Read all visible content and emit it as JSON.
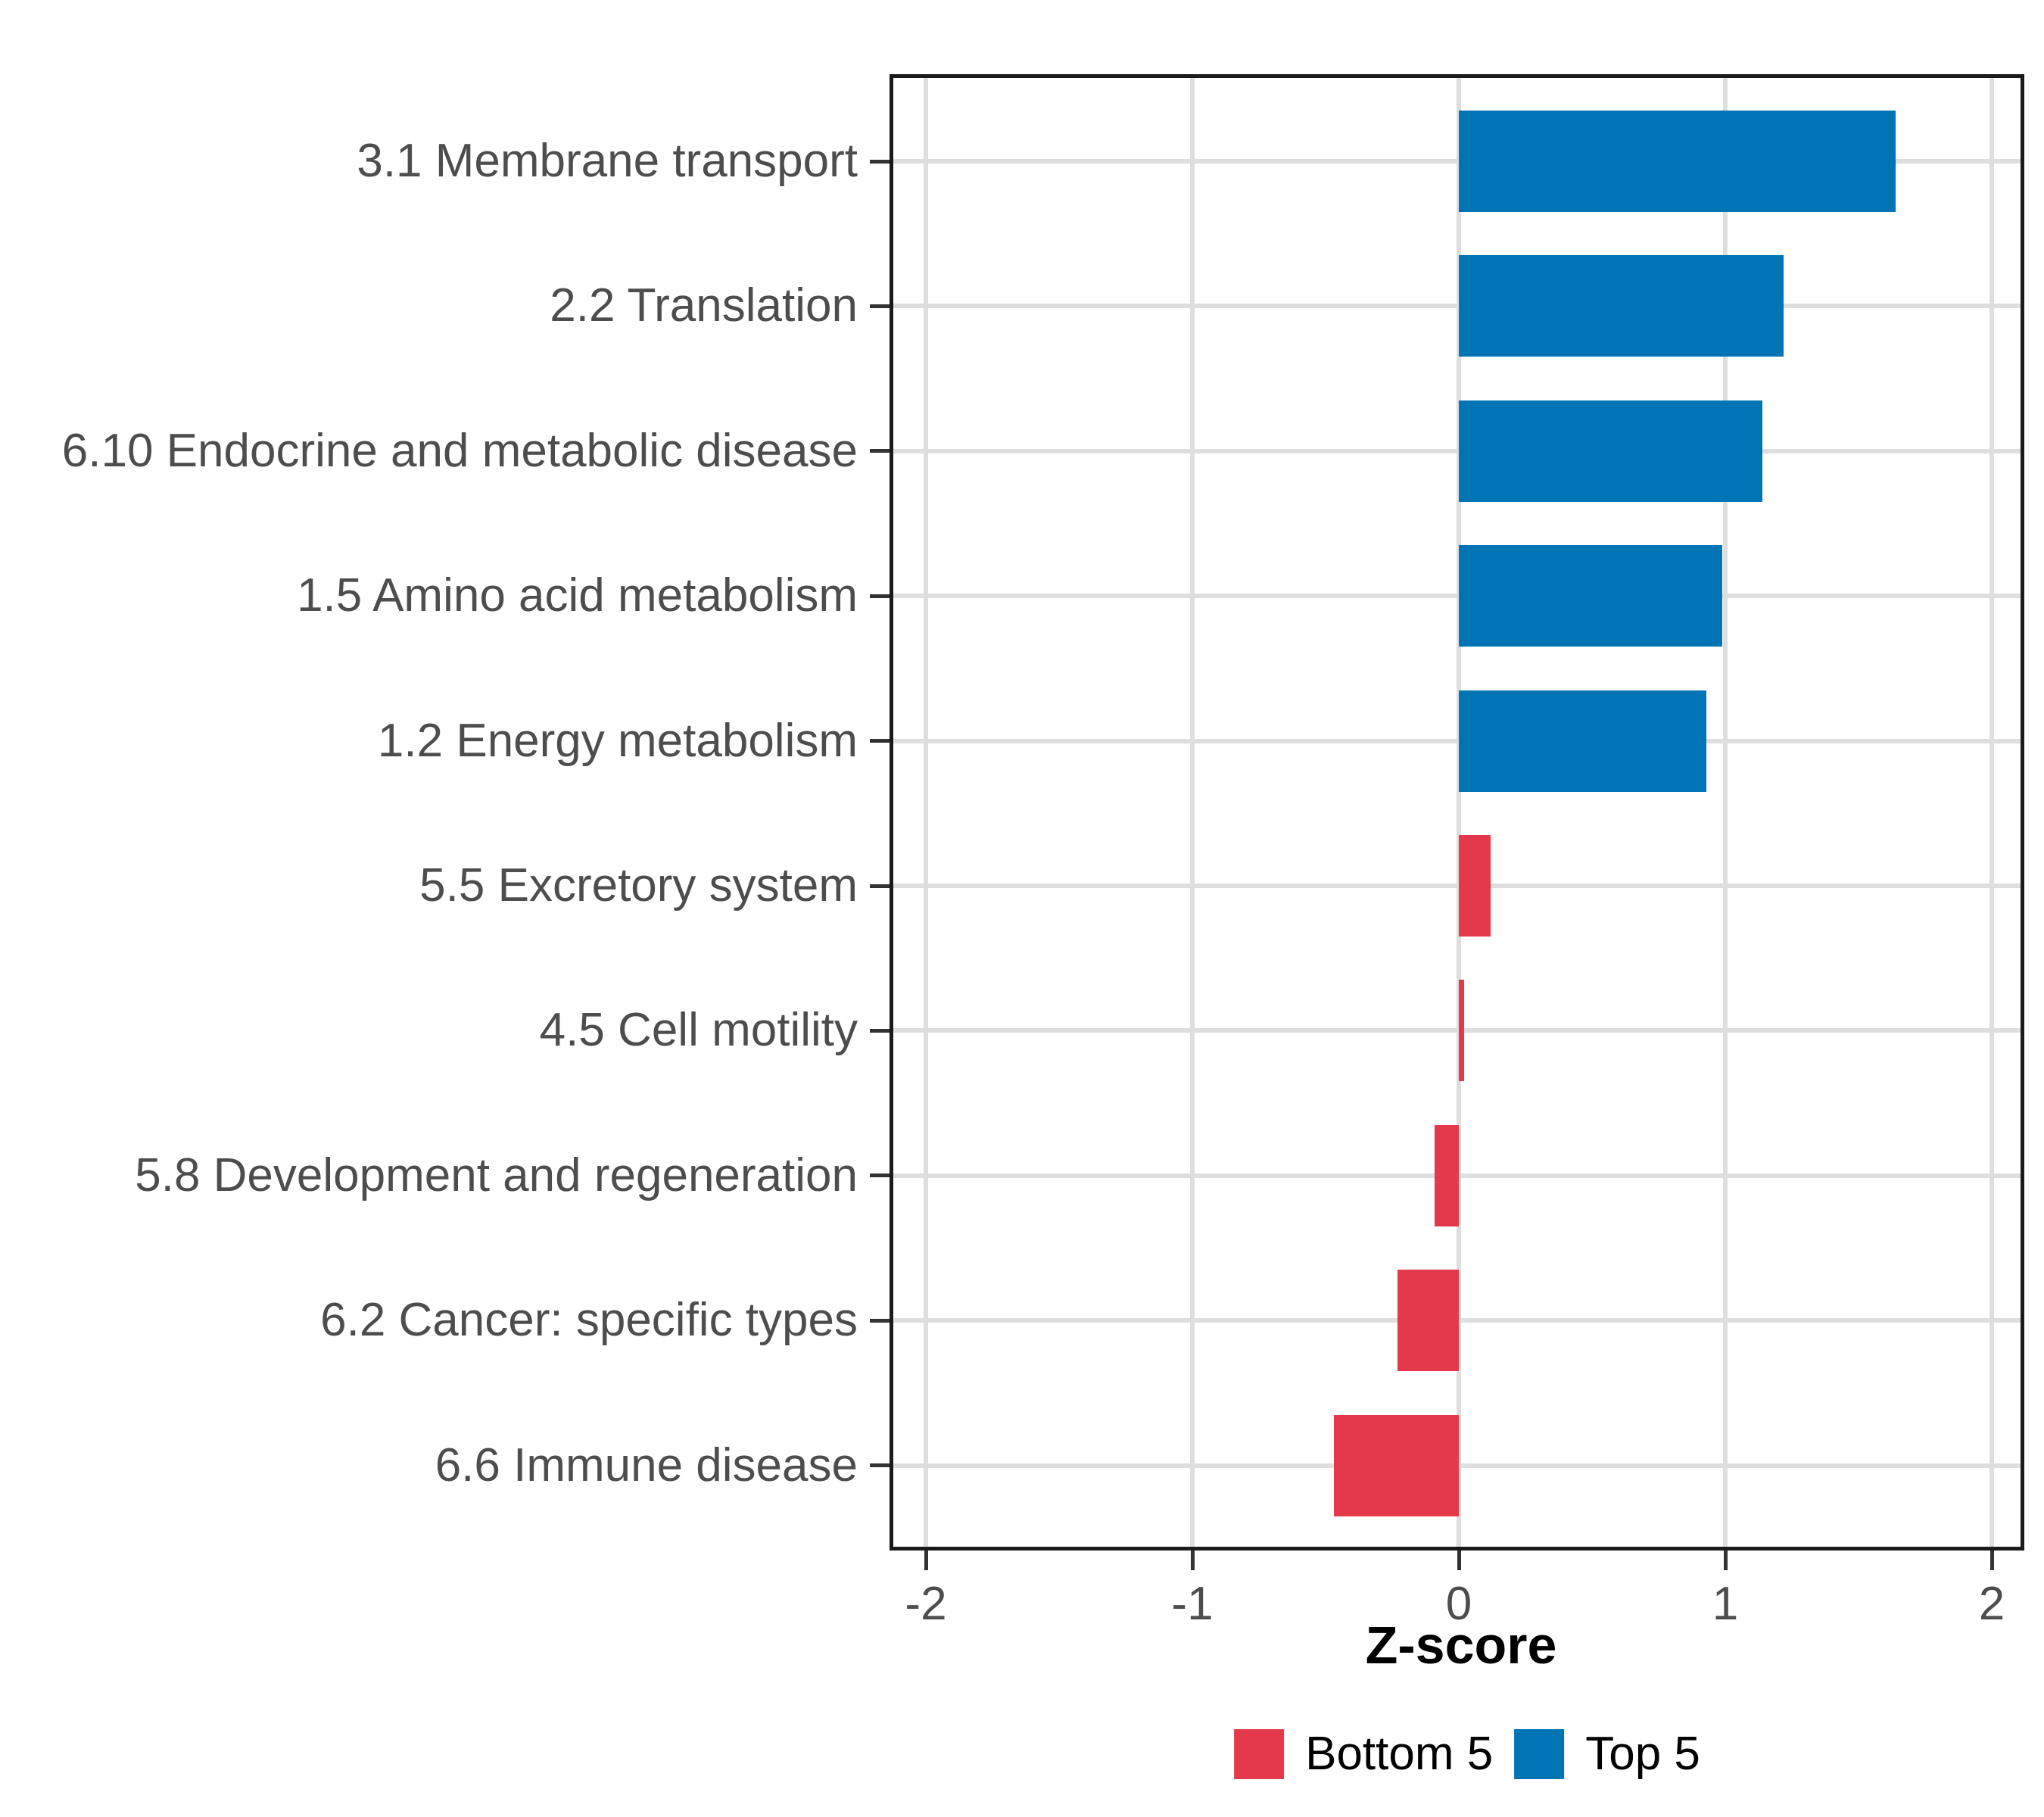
{
  "chart_data": {
    "type": "bar",
    "orientation": "horizontal",
    "title": "",
    "xlabel": "Z-score",
    "ylabel": "",
    "categories": [
      "3.1 Membrane transport",
      "2.2 Translation",
      "6.10 Endocrine and metabolic disease",
      "1.5 Amino acid metabolism",
      "1.2 Energy metabolism",
      "5.5 Excretory system",
      "4.5 Cell motility",
      "5.8 Development and regeneration",
      "6.2 Cancer: specific types",
      "6.6 Immune disease"
    ],
    "values": [
      1.64,
      1.22,
      1.14,
      0.99,
      0.93,
      0.12,
      0.02,
      -0.09,
      -0.23,
      -0.47
    ],
    "groups": [
      "Top 5",
      "Top 5",
      "Top 5",
      "Top 5",
      "Top 5",
      "Bottom 5",
      "Bottom 5",
      "Bottom 5",
      "Bottom 5",
      "Bottom 5"
    ],
    "x_ticks": [
      -2,
      -1,
      0,
      1,
      2
    ],
    "x_tick_labels": [
      "-2",
      "-1",
      "0",
      "1",
      "2"
    ],
    "xlim": [
      -2.14,
      2.12
    ],
    "grid": "major-only",
    "legend_position": "bottom",
    "legend": [
      {
        "label": "Bottom 5",
        "color": "#E4394B"
      },
      {
        "label": "Top 5",
        "color": "#0074B4"
      }
    ],
    "colors": {
      "bar_red": "#E4394B",
      "bar_blue": "#0074B4",
      "gridline": "#DEDEDE",
      "panel_border": "#1A1A1A",
      "axis_text": "#4D4D4D",
      "axis_title": "#000000"
    }
  }
}
